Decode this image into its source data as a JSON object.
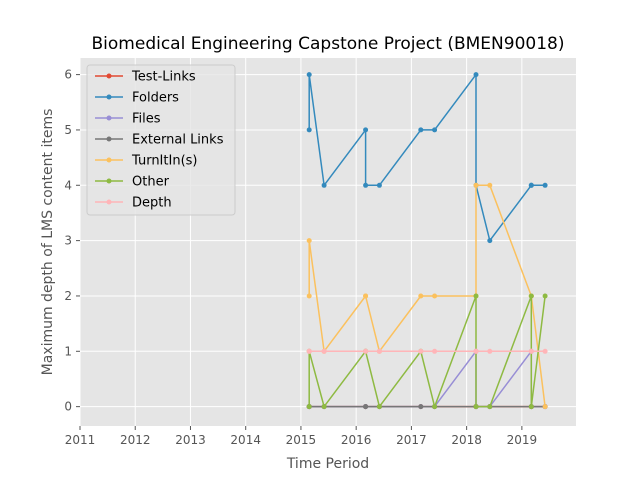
{
  "chart_data": {
    "type": "line",
    "title": "Biomedical Engineering Capstone Project (BMEN90018)",
    "xlabel": "Time Period",
    "ylabel": "Maximum depth of LMS content items",
    "xlim": [
      2011.0,
      2019.98
    ],
    "ylim": [
      -0.35,
      6.3
    ],
    "xticks": [
      2011,
      2012,
      2013,
      2014,
      2015,
      2016,
      2017,
      2018,
      2019
    ],
    "yticks": [
      0,
      1,
      2,
      3,
      4,
      5,
      6
    ],
    "grid": true,
    "legend_position": "upper left",
    "series": [
      {
        "name": "Test-Links",
        "color": "#E24A33",
        "x": [
          2015.15,
          2015.15,
          2015.42,
          2016.17,
          2016.17,
          2016.42,
          2017.17,
          2017.42,
          2018.17,
          2018.17,
          2018.42,
          2019.17,
          2019.17,
          2019.42
        ],
        "y": [
          0,
          0,
          0,
          0,
          0,
          0,
          0,
          0,
          0,
          0,
          0,
          0,
          0,
          0
        ]
      },
      {
        "name": "Folders",
        "color": "#348ABD",
        "x": [
          2015.15,
          2015.15,
          2015.42,
          2016.17,
          2016.17,
          2016.42,
          2017.17,
          2017.42,
          2018.17,
          2018.17,
          2018.42,
          2019.17,
          2019.17,
          2019.42
        ],
        "y": [
          5,
          6,
          4,
          5,
          4,
          4,
          5,
          5,
          6,
          4,
          3,
          4,
          4,
          4
        ]
      },
      {
        "name": "Files",
        "color": "#988ED5",
        "x": [
          2015.15,
          2015.15,
          2015.42,
          2016.17,
          2016.17,
          2016.42,
          2017.17,
          2017.42,
          2018.17,
          2018.17,
          2018.42,
          2019.17,
          2019.17,
          2019.42
        ],
        "y": [
          0,
          0,
          0,
          0,
          0,
          0,
          0,
          0,
          1,
          0,
          0,
          1,
          0,
          0
        ]
      },
      {
        "name": "External Links",
        "color": "#777777",
        "x": [
          2015.15,
          2015.15,
          2015.42,
          2016.17,
          2016.17,
          2016.42,
          2017.17,
          2017.42,
          2018.17,
          2018.17,
          2018.42,
          2019.17,
          2019.17,
          2019.42
        ],
        "y": [
          0,
          0,
          0,
          0,
          0,
          0,
          0,
          0,
          0,
          0,
          0,
          0,
          0,
          0
        ]
      },
      {
        "name": "TurnItIn(s)",
        "color": "#FBC15E",
        "x": [
          2015.15,
          2015.15,
          2015.42,
          2016.17,
          2016.17,
          2016.42,
          2017.17,
          2017.42,
          2018.17,
          2018.17,
          2018.42,
          2019.17,
          2019.17,
          2019.42
        ],
        "y": [
          2,
          3,
          1,
          2,
          2,
          1,
          2,
          2,
          2,
          4,
          4,
          2,
          2,
          0
        ]
      },
      {
        "name": "Other",
        "color": "#8EBA42",
        "x": [
          2015.15,
          2015.15,
          2015.42,
          2016.17,
          2016.17,
          2016.42,
          2017.17,
          2017.42,
          2018.17,
          2018.17,
          2018.42,
          2019.17,
          2019.17,
          2019.42
        ],
        "y": [
          0,
          1,
          0,
          1,
          1,
          0,
          1,
          0,
          2,
          0,
          0,
          2,
          0,
          2
        ]
      },
      {
        "name": "Depth",
        "color": "#FFB5B8",
        "x": [
          2015.15,
          2015.15,
          2015.42,
          2016.17,
          2016.17,
          2016.42,
          2017.17,
          2017.42,
          2018.17,
          2018.17,
          2018.42,
          2019.17,
          2019.17,
          2019.42
        ],
        "y": [
          1,
          1,
          1,
          1,
          1,
          1,
          1,
          1,
          1,
          1,
          1,
          1,
          1,
          1
        ]
      }
    ]
  }
}
